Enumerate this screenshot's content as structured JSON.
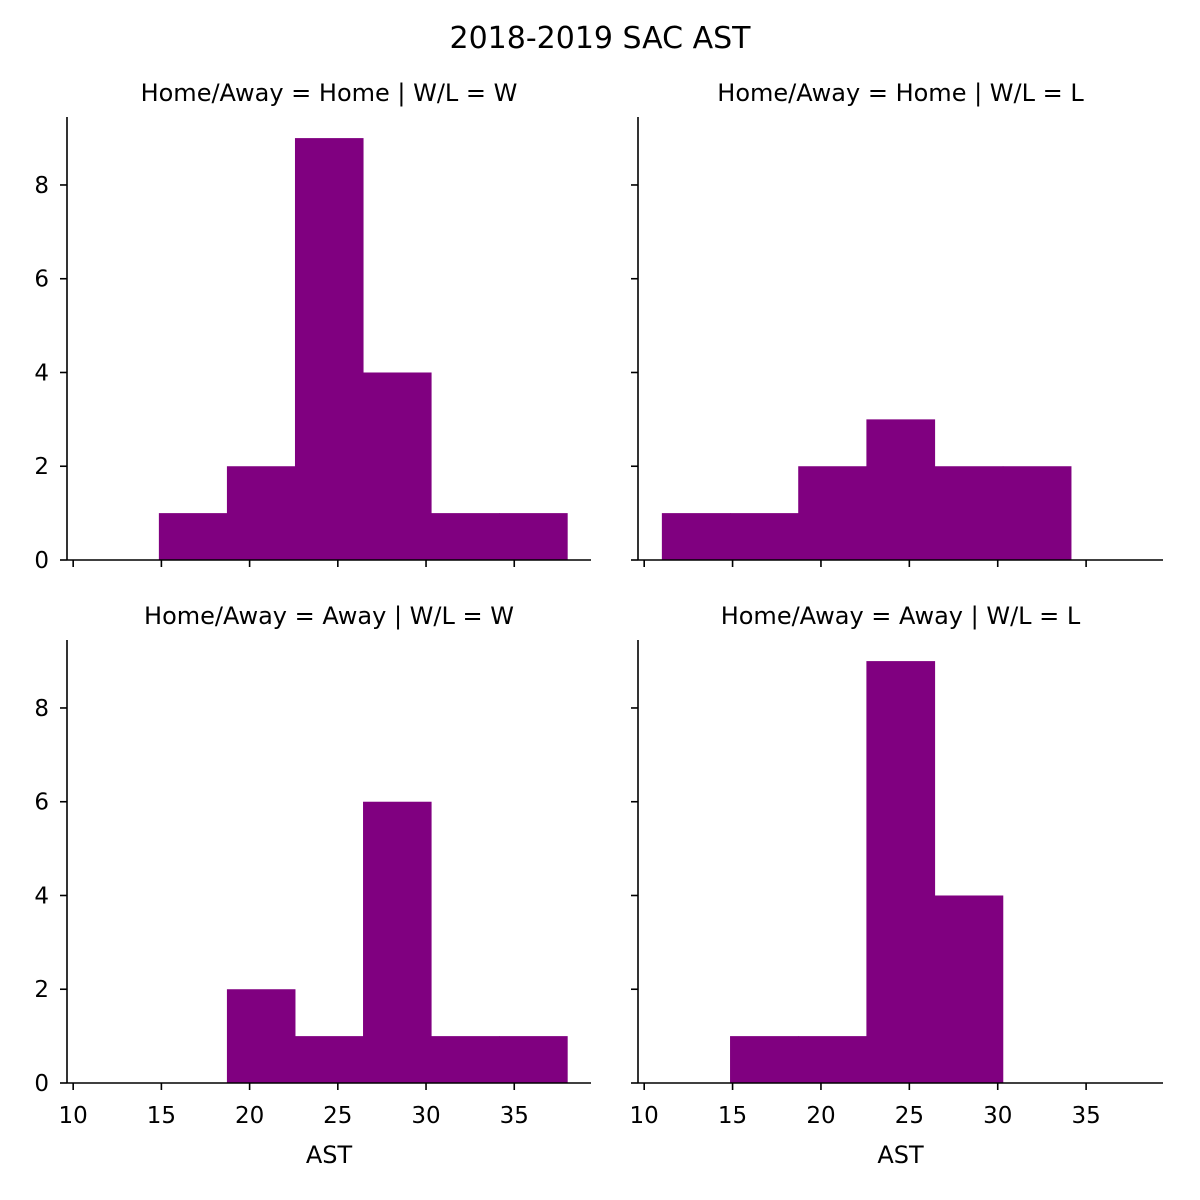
{
  "figure": {
    "title": "2018-2019 SAC AST",
    "bar_color": "#800080"
  },
  "chart_data": [
    {
      "type": "bar",
      "title": "Home/Away = Home | W/L = W",
      "bin_edges": [
        11,
        14.857,
        18.714,
        22.571,
        26.429,
        30.286,
        34.143,
        38
      ],
      "counts": [
        0,
        1,
        2,
        9,
        4,
        1,
        1
      ],
      "xlabel": "",
      "xlim": [
        9.65,
        39.35
      ],
      "ylim": [
        0,
        9.45
      ],
      "xticks": [
        10,
        15,
        20,
        25,
        30,
        35
      ],
      "yticks": [
        0,
        2,
        4,
        6,
        8
      ],
      "xticklabels_shown": false,
      "yticklabels_shown": true
    },
    {
      "type": "bar",
      "title": "Home/Away = Home | W/L = L",
      "bin_edges": [
        11,
        14.857,
        18.714,
        22.571,
        26.429,
        30.286,
        34.143,
        38
      ],
      "counts": [
        1,
        1,
        2,
        3,
        2,
        2,
        0
      ],
      "xlabel": "",
      "xlim": [
        9.65,
        39.35
      ],
      "ylim": [
        0,
        9.45
      ],
      "xticks": [
        10,
        15,
        20,
        25,
        30,
        35
      ],
      "yticks": [
        0,
        2,
        4,
        6,
        8
      ],
      "xticklabels_shown": false,
      "yticklabels_shown": false
    },
    {
      "type": "bar",
      "title": "Home/Away = Away | W/L = W",
      "bin_edges": [
        11,
        14.857,
        18.714,
        22.571,
        26.429,
        30.286,
        34.143,
        38
      ],
      "counts": [
        0,
        0,
        2,
        1,
        6,
        1,
        1
      ],
      "xlabel": "AST",
      "xlim": [
        9.65,
        39.35
      ],
      "ylim": [
        0,
        9.45
      ],
      "xticks": [
        10,
        15,
        20,
        25,
        30,
        35
      ],
      "yticks": [
        0,
        2,
        4,
        6,
        8
      ],
      "xticklabels_shown": true,
      "yticklabels_shown": true
    },
    {
      "type": "bar",
      "title": "Home/Away = Away | W/L = L",
      "bin_edges": [
        11,
        14.857,
        18.714,
        22.571,
        26.429,
        30.286,
        34.143,
        38
      ],
      "counts": [
        0,
        1,
        1,
        9,
        4,
        0,
        0
      ],
      "xlabel": "AST",
      "xlim": [
        9.65,
        39.35
      ],
      "ylim": [
        0,
        9.45
      ],
      "xticks": [
        10,
        15,
        20,
        25,
        30,
        35
      ],
      "yticks": [
        0,
        2,
        4,
        6,
        8
      ],
      "xticklabels_shown": true,
      "yticklabels_shown": false
    }
  ]
}
